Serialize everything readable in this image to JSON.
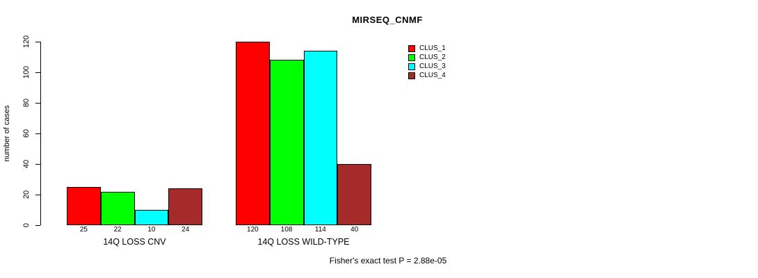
{
  "chart_data": {
    "type": "bar",
    "title": "MIRSEQ_CNMF",
    "ylabel": "number of cases",
    "xlabel": "",
    "categories": [
      "14Q LOSS CNV",
      "14Q LOSS WILD-TYPE"
    ],
    "series": [
      {
        "name": "CLUS_1",
        "color": "#ff0000",
        "values": [
          25,
          120
        ]
      },
      {
        "name": "CLUS_2",
        "color": "#00ff00",
        "values": [
          22,
          108
        ]
      },
      {
        "name": "CLUS_3",
        "color": "#00ffff",
        "values": [
          10,
          114
        ]
      },
      {
        "name": "CLUS_4",
        "color": "#a52a2a",
        "values": [
          24,
          40
        ]
      }
    ],
    "bar_value_labels": [
      [
        "25",
        "22",
        "10",
        "24"
      ],
      [
        "120",
        "108",
        "114",
        "40"
      ]
    ],
    "ylim": [
      0,
      120
    ],
    "yticks": [
      "0",
      "20",
      "40",
      "60",
      "80",
      "100",
      "120"
    ],
    "grid": false,
    "legend_position": "top-right",
    "legend_entries": [
      "CLUS_1",
      "CLUS_2",
      "CLUS_3",
      "CLUS_4"
    ],
    "annotation": "Fisher's exact test P = 2.88e-05"
  },
  "colors": {
    "clus_1": "#ff0000",
    "clus_2": "#00ff00",
    "clus_3": "#00ffff",
    "clus_4": "#a52a2a",
    "axis": "#000000",
    "background": "#ffffff"
  }
}
